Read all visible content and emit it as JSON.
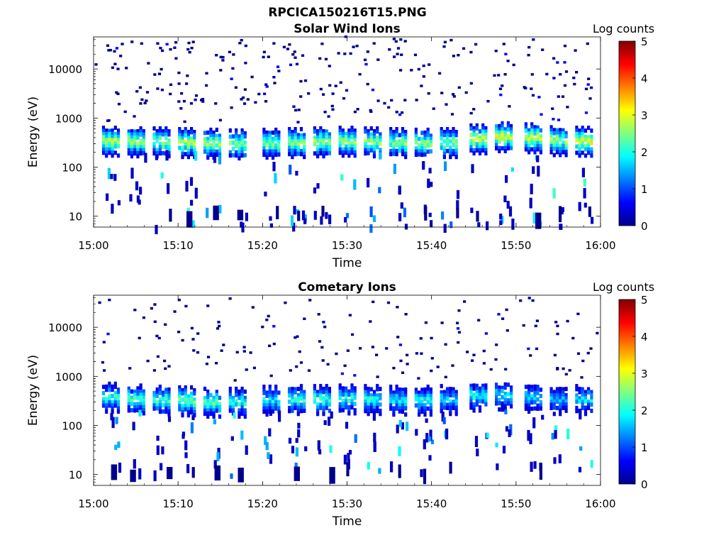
{
  "figure_title": "RPCICA150216T15.PNG",
  "colorbar": {
    "label": "Log counts",
    "ticks": [
      "0",
      "1",
      "2",
      "3",
      "4",
      "5"
    ],
    "range": [
      0,
      5
    ]
  },
  "chart_data": [
    {
      "type": "heatmap",
      "title": "Solar Wind Ions",
      "xlabel": "Time",
      "ylabel": "Energy (eV)",
      "x_ticks": [
        "15:00",
        "15:10",
        "15:20",
        "15:30",
        "15:40",
        "15:50",
        "16:00"
      ],
      "x_range_minutes": [
        0,
        60
      ],
      "y_scale": "log",
      "y_ticks": [
        "10",
        "100",
        "1000",
        "10000"
      ],
      "ylim": [
        6,
        45000
      ],
      "value_unit": "log counts",
      "sweep_start_minutes": [
        1,
        4,
        7,
        10,
        13,
        16,
        20,
        23,
        26,
        29,
        32,
        35,
        38,
        41,
        44.5,
        47.5,
        51,
        54,
        57
      ],
      "peak_energy_eV": [
        340,
        330,
        330,
        320,
        310,
        300,
        310,
        320,
        330,
        340,
        330,
        320,
        310,
        320,
        380,
        420,
        400,
        350,
        340
      ],
      "peak_log_counts": [
        3.1,
        3.0,
        2.9,
        3.1,
        3.0,
        2.9,
        2.8,
        2.9,
        3.0,
        3.0,
        2.9,
        2.8,
        2.9,
        2.8,
        3.3,
        3.3,
        3.2,
        3.0,
        3.3
      ]
    },
    {
      "type": "heatmap",
      "title": "Cometary Ions",
      "xlabel": "Time",
      "ylabel": "Energy (eV)",
      "x_ticks": [
        "15:00",
        "15:10",
        "15:20",
        "15:30",
        "15:40",
        "15:50",
        "16:00"
      ],
      "x_range_minutes": [
        0,
        60
      ],
      "y_scale": "log",
      "y_ticks": [
        "10",
        "100",
        "1000",
        "10000"
      ],
      "ylim": [
        6,
        45000
      ],
      "value_unit": "log counts",
      "sweep_start_minutes": [
        1,
        4,
        7,
        10,
        13,
        16,
        20,
        23,
        26,
        29,
        32,
        35,
        38,
        41,
        44.5,
        47.5,
        51,
        54,
        57
      ],
      "peak_energy_eV": [
        380,
        350,
        330,
        320,
        300,
        300,
        330,
        340,
        340,
        350,
        340,
        330,
        330,
        340,
        400,
        420,
        380,
        340,
        340
      ],
      "peak_log_counts": [
        2.4,
        2.5,
        2.5,
        2.7,
        2.6,
        2.3,
        2.2,
        2.4,
        2.5,
        2.3,
        2.3,
        2.1,
        2.2,
        2.0,
        2.2,
        2.0,
        2.0,
        1.8,
        2.1
      ]
    }
  ]
}
